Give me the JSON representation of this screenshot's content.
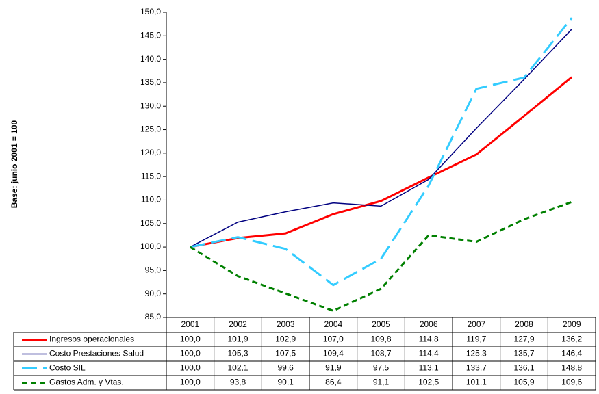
{
  "chart_data": {
    "type": "line",
    "y_label": "Base: junio 2001 = 100",
    "categories": [
      "2001",
      "2002",
      "2003",
      "2004",
      "2005",
      "2006",
      "2007",
      "2008",
      "2009"
    ],
    "series": [
      {
        "name": "Ingresos operacionales",
        "color": "#ff0000",
        "line_style": "solid",
        "line_width": 3,
        "values": [
          100.0,
          101.9,
          102.9,
          107.0,
          109.8,
          114.8,
          119.7,
          127.9,
          136.2
        ],
        "value_labels": [
          "100,0",
          "101,9",
          "102,9",
          "107,0",
          "109,8",
          "114,8",
          "119,7",
          "127,9",
          "136,2"
        ]
      },
      {
        "name": "Costo Prestaciones Salud",
        "color": "#000080",
        "line_style": "solid",
        "line_width": 1.5,
        "values": [
          100.0,
          105.3,
          107.5,
          109.4,
          108.7,
          114.4,
          125.3,
          135.7,
          146.4
        ],
        "value_labels": [
          "100,0",
          "105,3",
          "107,5",
          "109,4",
          "108,7",
          "114,4",
          "125,3",
          "135,7",
          "146,4"
        ]
      },
      {
        "name": "Costo SIL",
        "color": "#33ccff",
        "line_style": "long-dash",
        "line_width": 3,
        "values": [
          100.0,
          102.1,
          99.6,
          91.9,
          97.5,
          113.1,
          133.7,
          136.1,
          148.8
        ],
        "value_labels": [
          "100,0",
          "102,1",
          "99,6",
          "91,9",
          "97,5",
          "113,1",
          "133,7",
          "136,1",
          "148,8"
        ]
      },
      {
        "name": "Gastos Adm. y Vtas.",
        "color": "#008000",
        "line_style": "dash",
        "line_width": 3,
        "values": [
          100.0,
          93.8,
          90.1,
          86.4,
          91.1,
          102.5,
          101.1,
          105.9,
          109.6
        ],
        "value_labels": [
          "100,0",
          "93,8",
          "90,1",
          "86,4",
          "91,1",
          "102,5",
          "101,1",
          "105,9",
          "109,6"
        ]
      }
    ],
    "ylim": [
      85,
      150
    ],
    "yticks": [
      {
        "value": 85,
        "label": "85,0"
      },
      {
        "value": 90,
        "label": "90,0"
      },
      {
        "value": 95,
        "label": "95,0"
      },
      {
        "value": 100,
        "label": "100,0"
      },
      {
        "value": 105,
        "label": "105,0"
      },
      {
        "value": 110,
        "label": "110,0"
      },
      {
        "value": 115,
        "label": "115,0"
      },
      {
        "value": 120,
        "label": "120,0"
      },
      {
        "value": 125,
        "label": "125,0"
      },
      {
        "value": 130,
        "label": "130,0"
      },
      {
        "value": 135,
        "label": "135,0"
      },
      {
        "value": 140,
        "label": "140,0"
      },
      {
        "value": 145,
        "label": "145,0"
      },
      {
        "value": 150,
        "label": "150,0"
      }
    ],
    "grid": false
  }
}
